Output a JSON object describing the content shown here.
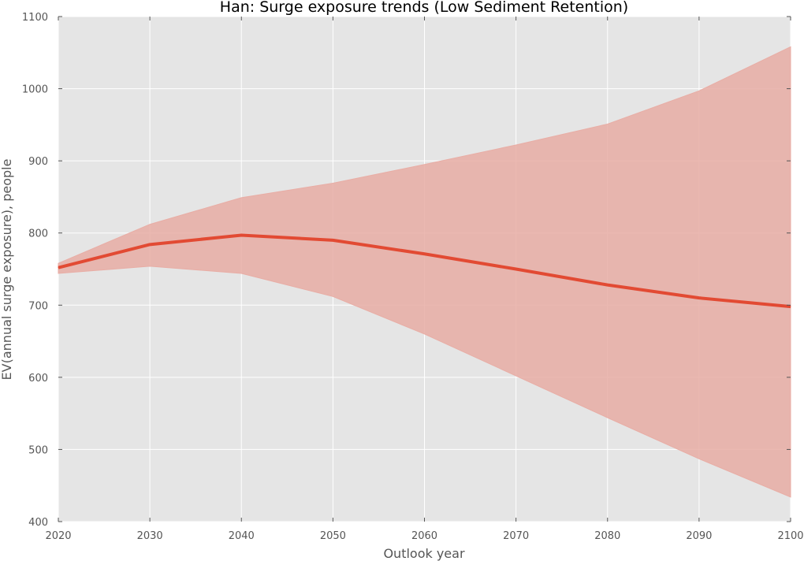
{
  "chart_data": {
    "type": "line",
    "title": "Han: Surge exposure trends (Low Sediment Retention)",
    "xlabel": "Outlook year",
    "ylabel": "EV(annual surge exposure), people",
    "xlim": [
      2020,
      2100
    ],
    "ylim": [
      400,
      1100
    ],
    "x_ticks": [
      "2020",
      "2030",
      "2040",
      "2050",
      "2060",
      "2070",
      "2080",
      "2090",
      "2100"
    ],
    "y_ticks": [
      "400",
      "500",
      "600",
      "700",
      "800",
      "900",
      "1000",
      "1100"
    ],
    "grid": true,
    "x": [
      2020,
      2030,
      2040,
      2050,
      2060,
      2070,
      2080,
      2090,
      2100
    ],
    "series": [
      {
        "values": [
          752,
          784,
          797,
          790,
          771,
          750,
          728,
          710,
          698
        ],
        "band_upper": [
          758,
          812,
          849,
          869,
          895,
          922,
          951,
          997,
          1058
        ],
        "band_lower": [
          744,
          754,
          744,
          712,
          660,
          602,
          544,
          487,
          434
        ]
      }
    ],
    "colors": {
      "line": "#e24a33",
      "band": "#e8ada5",
      "background": "#e5e5e5",
      "grid": "#ffffff"
    }
  }
}
